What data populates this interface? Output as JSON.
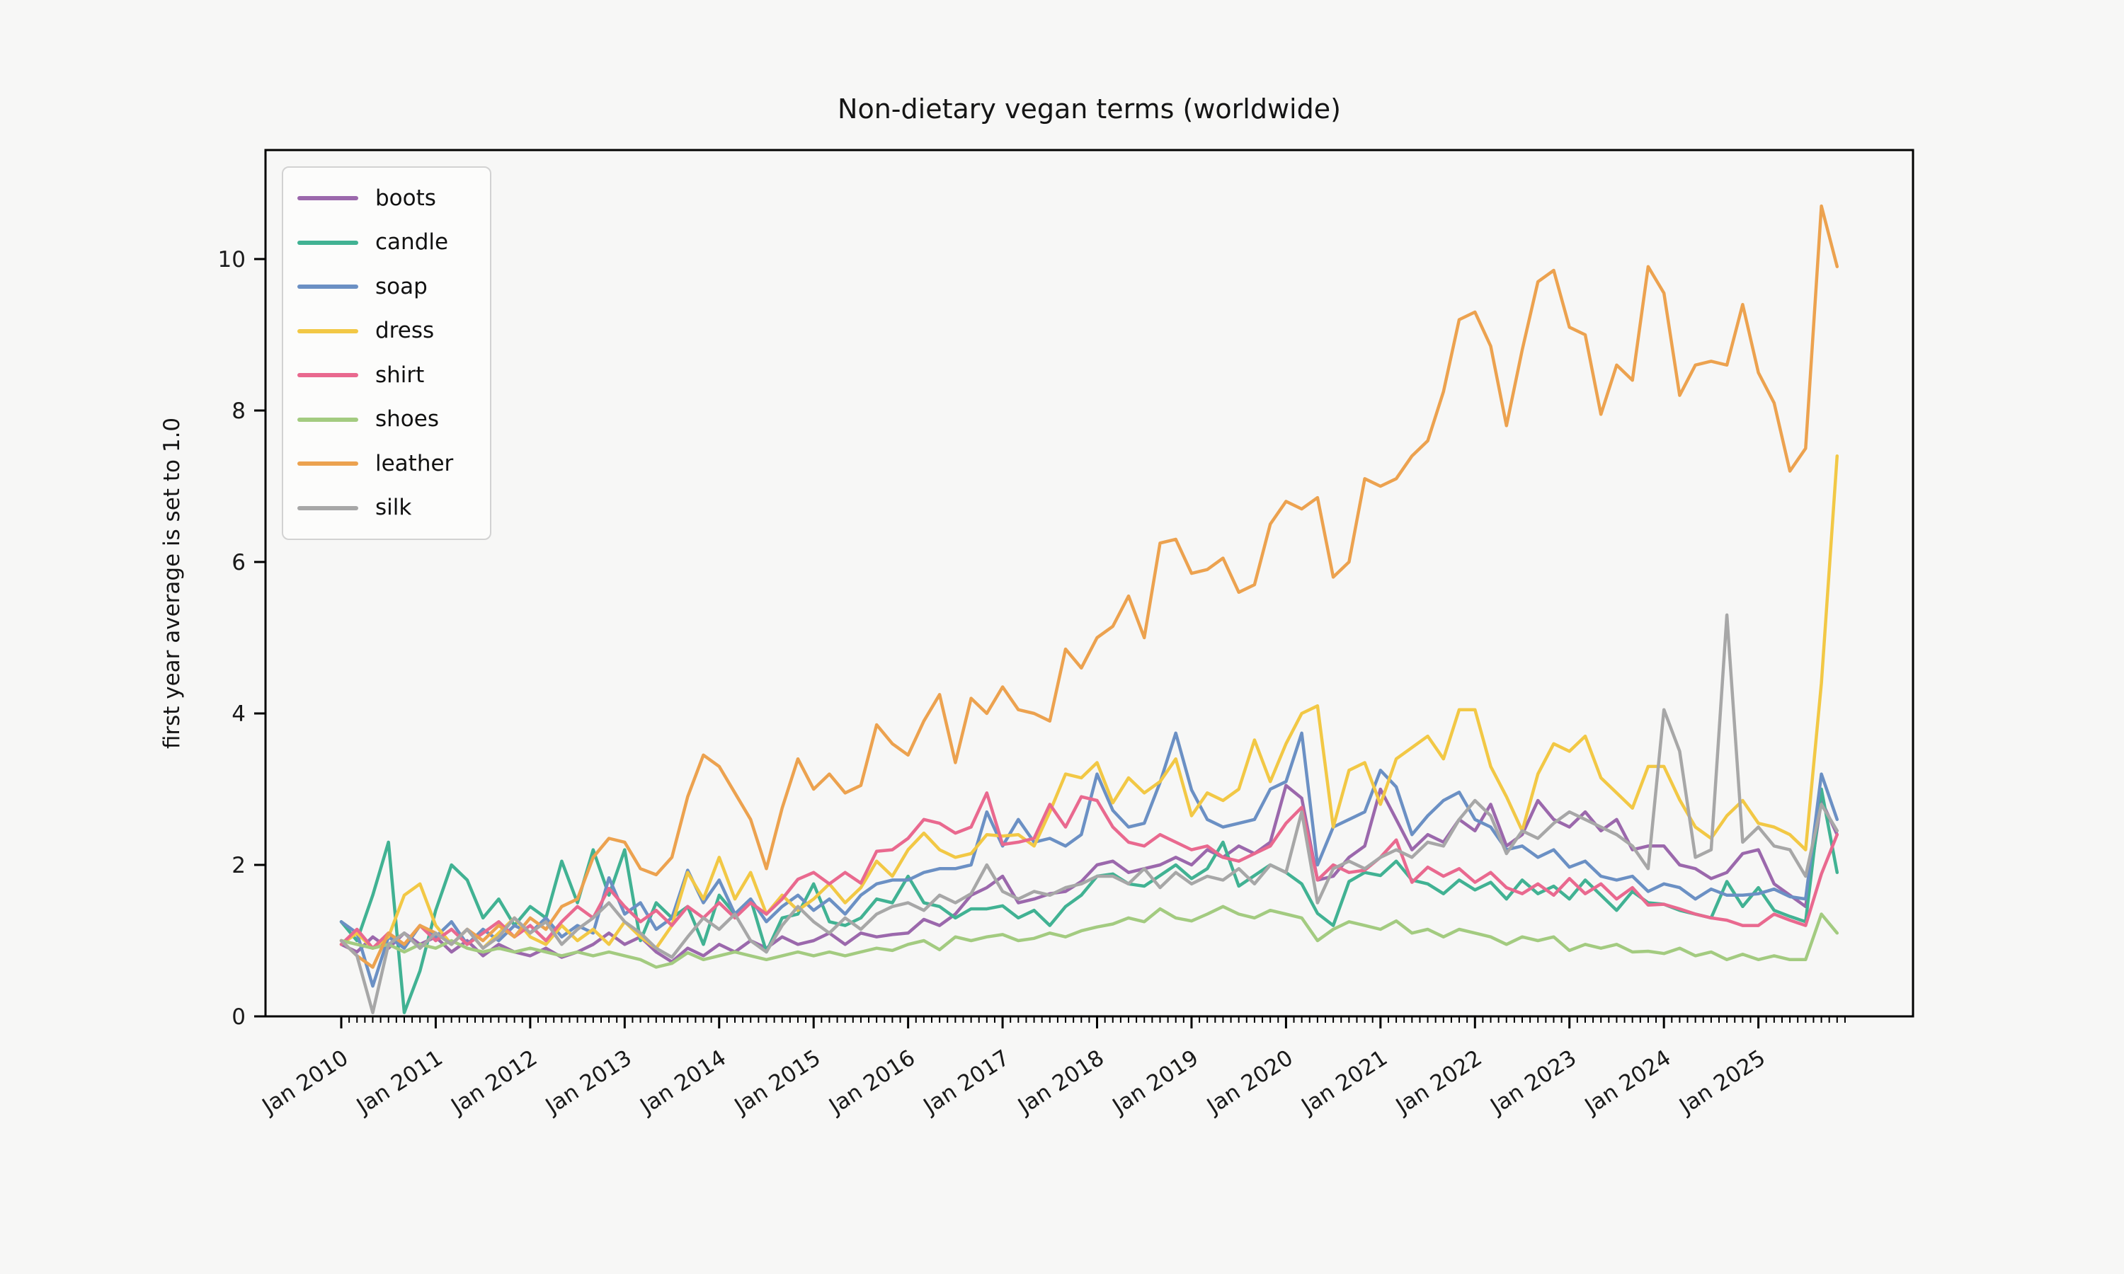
{
  "chart": {
    "title": "Non-dietary vegan terms (worldwide)",
    "ylabel": "first year average is set to 1.0",
    "x_tick_labels": [
      "Jan 2010",
      "Jan 2011",
      "Jan 2012",
      "Jan 2013",
      "Jan 2014",
      "Jan 2015",
      "Jan 2016",
      "Jan 2017",
      "Jan 2018",
      "Jan 2019",
      "Jan 2020",
      "Jan 2021",
      "Jan 2022",
      "Jan 2023",
      "Jan 2024",
      "Jan 2025"
    ],
    "y_tick_labels": [
      "0",
      "2",
      "4",
      "6",
      "8",
      "10"
    ]
  },
  "colors": {
    "background": "#f7f7f6",
    "axes_edge": "#000000",
    "tick_label": "#1a1a1a",
    "legend_bg": "#fcfcfb",
    "legend_border": "#d2d2d2"
  },
  "chart_data": {
    "type": "line",
    "title": "Non-dietary vegan terms (worldwide)",
    "xlabel": "",
    "ylabel": "first year average is set to 1.0",
    "x_start": "2010-01",
    "x_step_months": 2,
    "x_end": "2025-11",
    "xlim_years": [
      2009.35,
      2026.35
    ],
    "ylim": [
      0,
      11.44
    ],
    "grid": false,
    "legend_position": "upper left",
    "x_tick_labels": [
      "Jan 2010",
      "Jan 2011",
      "Jan 2012",
      "Jan 2013",
      "Jan 2014",
      "Jan 2015",
      "Jan 2016",
      "Jan 2017",
      "Jan 2018",
      "Jan 2019",
      "Jan 2020",
      "Jan 2021",
      "Jan 2022",
      "Jan 2023",
      "Jan 2024",
      "Jan 2025"
    ],
    "y_ticks": [
      0,
      2,
      4,
      6,
      8,
      10
    ],
    "minor_ticks": "monthly",
    "series": [
      {
        "name": "boots",
        "color": "#9b68ac",
        "values": [
          0.95,
          0.85,
          1.05,
          0.9,
          1.1,
          0.95,
          1.05,
          0.85,
          1.0,
          0.8,
          0.95,
          0.85,
          0.8,
          0.9,
          0.78,
          0.85,
          0.95,
          1.1,
          0.95,
          1.05,
          0.85,
          0.72,
          0.9,
          0.8,
          0.95,
          0.85,
          1.0,
          0.9,
          1.05,
          0.95,
          1.0,
          1.1,
          0.95,
          1.1,
          1.05,
          1.08,
          1.1,
          1.28,
          1.2,
          1.35,
          1.6,
          1.7,
          1.85,
          1.5,
          1.55,
          1.62,
          1.65,
          1.78,
          2.0,
          2.05,
          1.9,
          1.95,
          2.0,
          2.1,
          2.0,
          2.2,
          2.1,
          2.25,
          2.15,
          2.3,
          3.05,
          2.88,
          1.8,
          1.85,
          2.1,
          2.25,
          3.0,
          2.6,
          2.2,
          2.4,
          2.3,
          2.6,
          2.45,
          2.8,
          2.25,
          2.4,
          2.85,
          2.6,
          2.5,
          2.7,
          2.45,
          2.6,
          2.2,
          2.25,
          2.25,
          2.0,
          1.95,
          1.82,
          1.9,
          2.15,
          2.2,
          1.75,
          1.6,
          1.45,
          2.85,
          2.4
        ]
      },
      {
        "name": "candle",
        "color": "#41b293",
        "values": [
          1.25,
          1.0,
          1.6,
          2.3,
          0.05,
          0.6,
          1.4,
          2.0,
          1.8,
          1.3,
          1.55,
          1.2,
          1.45,
          1.3,
          2.05,
          1.5,
          2.2,
          1.6,
          2.2,
          1.0,
          1.5,
          1.3,
          1.45,
          0.95,
          1.6,
          1.35,
          1.55,
          0.85,
          1.3,
          1.35,
          1.75,
          1.25,
          1.2,
          1.3,
          1.55,
          1.5,
          1.85,
          1.5,
          1.45,
          1.3,
          1.42,
          1.42,
          1.46,
          1.3,
          1.4,
          1.2,
          1.45,
          1.6,
          1.85,
          1.88,
          1.75,
          1.72,
          1.86,
          2.0,
          1.82,
          1.95,
          2.3,
          1.72,
          1.86,
          2.0,
          1.9,
          1.75,
          1.36,
          1.2,
          1.78,
          1.9,
          1.86,
          2.05,
          1.8,
          1.75,
          1.62,
          1.8,
          1.67,
          1.77,
          1.55,
          1.8,
          1.62,
          1.72,
          1.55,
          1.8,
          1.6,
          1.4,
          1.65,
          1.5,
          1.48,
          1.4,
          1.35,
          1.3,
          1.78,
          1.45,
          1.7,
          1.4,
          1.32,
          1.25,
          3.0,
          1.9
        ]
      },
      {
        "name": "soap",
        "color": "#6b90c4",
        "values": [
          1.25,
          1.1,
          0.4,
          1.05,
          0.9,
          1.2,
          1.05,
          1.25,
          0.95,
          1.15,
          1.0,
          1.2,
          1.1,
          1.3,
          1.05,
          1.2,
          1.1,
          1.83,
          1.35,
          1.5,
          1.15,
          1.3,
          1.93,
          1.5,
          1.8,
          1.35,
          1.55,
          1.25,
          1.45,
          1.6,
          1.4,
          1.55,
          1.35,
          1.6,
          1.75,
          1.8,
          1.8,
          1.9,
          1.95,
          1.95,
          2.0,
          2.7,
          2.25,
          2.6,
          2.3,
          2.35,
          2.25,
          2.4,
          3.2,
          2.72,
          2.5,
          2.55,
          3.09,
          3.74,
          2.99,
          2.6,
          2.5,
          2.55,
          2.6,
          3.0,
          3.1,
          3.74,
          2.0,
          2.5,
          2.6,
          2.7,
          3.25,
          3.03,
          2.4,
          2.65,
          2.85,
          2.96,
          2.6,
          2.5,
          2.2,
          2.25,
          2.1,
          2.2,
          1.97,
          2.05,
          1.85,
          1.8,
          1.85,
          1.65,
          1.75,
          1.7,
          1.55,
          1.68,
          1.6,
          1.6,
          1.62,
          1.68,
          1.58,
          1.55,
          3.2,
          2.6
        ]
      },
      {
        "name": "dress",
        "color": "#f2c845",
        "values": [
          0.95,
          1.1,
          0.9,
          1.05,
          1.6,
          1.75,
          1.2,
          0.95,
          1.15,
          0.9,
          1.1,
          1.3,
          1.05,
          0.95,
          1.2,
          1.0,
          1.15,
          0.95,
          1.25,
          1.05,
          0.9,
          1.2,
          1.9,
          1.55,
          2.1,
          1.55,
          1.9,
          1.35,
          1.6,
          1.4,
          1.55,
          1.75,
          1.5,
          1.7,
          2.05,
          1.85,
          2.2,
          2.42,
          2.2,
          2.1,
          2.15,
          2.4,
          2.38,
          2.4,
          2.25,
          2.7,
          3.2,
          3.15,
          3.35,
          2.82,
          3.15,
          2.95,
          3.1,
          3.4,
          2.65,
          2.95,
          2.85,
          3.0,
          3.65,
          3.1,
          3.6,
          4.0,
          4.1,
          2.5,
          3.25,
          3.35,
          2.8,
          3.4,
          3.55,
          3.7,
          3.4,
          4.05,
          4.05,
          3.3,
          2.9,
          2.45,
          3.2,
          3.6,
          3.5,
          3.7,
          3.15,
          2.95,
          2.75,
          3.3,
          3.3,
          2.86,
          2.5,
          2.35,
          2.65,
          2.85,
          2.55,
          2.5,
          2.4,
          2.2,
          4.4,
          7.4
        ]
      },
      {
        "name": "shirt",
        "color": "#e9698f",
        "values": [
          0.95,
          1.15,
          0.9,
          1.1,
          0.95,
          1.2,
          1.0,
          1.15,
          0.95,
          1.1,
          1.25,
          1.05,
          1.2,
          1.0,
          1.25,
          1.45,
          1.3,
          1.69,
          1.45,
          1.25,
          1.4,
          1.2,
          1.45,
          1.3,
          1.5,
          1.3,
          1.5,
          1.35,
          1.55,
          1.81,
          1.9,
          1.75,
          1.9,
          1.76,
          2.18,
          2.2,
          2.35,
          2.6,
          2.55,
          2.42,
          2.5,
          2.95,
          2.27,
          2.3,
          2.35,
          2.8,
          2.5,
          2.9,
          2.85,
          2.5,
          2.3,
          2.25,
          2.4,
          2.3,
          2.2,
          2.25,
          2.1,
          2.05,
          2.15,
          2.25,
          2.55,
          2.76,
          1.8,
          2.0,
          1.9,
          1.93,
          2.1,
          2.33,
          1.77,
          1.97,
          1.85,
          1.95,
          1.77,
          1.9,
          1.7,
          1.62,
          1.75,
          1.6,
          1.82,
          1.62,
          1.75,
          1.55,
          1.7,
          1.47,
          1.48,
          1.42,
          1.35,
          1.3,
          1.27,
          1.2,
          1.2,
          1.35,
          1.27,
          1.2,
          1.88,
          2.4
        ]
      },
      {
        "name": "shoes",
        "color": "#a3cb80",
        "values": [
          1.0,
          0.95,
          0.9,
          0.95,
          0.85,
          0.95,
          0.9,
          1.0,
          0.9,
          0.85,
          0.9,
          0.85,
          0.9,
          0.85,
          0.8,
          0.85,
          0.8,
          0.85,
          0.8,
          0.75,
          0.65,
          0.7,
          0.84,
          0.75,
          0.8,
          0.85,
          0.8,
          0.75,
          0.8,
          0.85,
          0.8,
          0.85,
          0.8,
          0.85,
          0.9,
          0.87,
          0.95,
          1.0,
          0.88,
          1.05,
          1.0,
          1.05,
          1.08,
          1.0,
          1.03,
          1.1,
          1.05,
          1.13,
          1.18,
          1.22,
          1.3,
          1.25,
          1.42,
          1.3,
          1.26,
          1.35,
          1.45,
          1.35,
          1.3,
          1.4,
          1.35,
          1.3,
          1.0,
          1.15,
          1.25,
          1.2,
          1.15,
          1.26,
          1.1,
          1.15,
          1.05,
          1.15,
          1.1,
          1.05,
          0.95,
          1.05,
          1.0,
          1.05,
          0.87,
          0.95,
          0.9,
          0.95,
          0.85,
          0.86,
          0.83,
          0.9,
          0.8,
          0.85,
          0.75,
          0.82,
          0.75,
          0.8,
          0.75,
          0.75,
          1.35,
          1.1
        ]
      },
      {
        "name": "leather",
        "color": "#eca24f",
        "values": [
          1.0,
          0.8,
          0.65,
          1.1,
          0.95,
          1.2,
          1.1,
          0.95,
          1.15,
          1.0,
          1.2,
          1.05,
          1.3,
          1.15,
          1.45,
          1.55,
          2.1,
          2.35,
          2.3,
          1.95,
          1.87,
          2.1,
          2.9,
          3.45,
          3.3,
          2.95,
          2.6,
          1.95,
          2.75,
          3.4,
          3.0,
          3.2,
          2.95,
          3.05,
          3.85,
          3.6,
          3.45,
          3.9,
          4.25,
          3.35,
          4.2,
          4.0,
          4.35,
          4.05,
          4.0,
          3.9,
          4.85,
          4.6,
          5.0,
          5.15,
          5.55,
          5.0,
          6.25,
          6.3,
          5.85,
          5.9,
          6.05,
          5.6,
          5.7,
          6.5,
          6.8,
          6.7,
          6.85,
          5.8,
          6.0,
          7.1,
          7.0,
          7.1,
          7.4,
          7.6,
          8.25,
          9.2,
          9.3,
          8.85,
          7.8,
          8.8,
          9.7,
          9.85,
          9.1,
          9.0,
          7.95,
          8.6,
          8.4,
          9.9,
          9.55,
          8.2,
          8.6,
          8.65,
          8.6,
          9.4,
          8.5,
          8.1,
          7.2,
          7.5,
          10.7,
          9.9
        ]
      },
      {
        "name": "silk",
        "color": "#a7a7a7",
        "values": [
          1.0,
          0.8,
          0.05,
          0.95,
          1.1,
          0.9,
          1.1,
          0.95,
          1.15,
          0.9,
          1.05,
          1.3,
          1.1,
          1.25,
          0.95,
          1.15,
          1.3,
          1.5,
          1.25,
          1.1,
          0.9,
          0.78,
          1.05,
          1.3,
          1.15,
          1.35,
          1.0,
          0.85,
          1.2,
          1.45,
          1.25,
          1.1,
          1.3,
          1.15,
          1.35,
          1.45,
          1.5,
          1.4,
          1.6,
          1.5,
          1.62,
          2.0,
          1.65,
          1.55,
          1.65,
          1.6,
          1.7,
          1.75,
          1.85,
          1.85,
          1.75,
          1.95,
          1.7,
          1.9,
          1.75,
          1.85,
          1.8,
          1.95,
          1.75,
          2.0,
          1.9,
          2.7,
          1.5,
          1.95,
          2.05,
          1.95,
          2.1,
          2.2,
          2.1,
          2.3,
          2.25,
          2.6,
          2.85,
          2.65,
          2.15,
          2.45,
          2.35,
          2.55,
          2.7,
          2.6,
          2.5,
          2.4,
          2.25,
          1.95,
          4.05,
          3.5,
          2.1,
          2.2,
          5.3,
          2.3,
          2.5,
          2.25,
          2.2,
          1.85,
          2.8,
          2.45
        ]
      }
    ]
  }
}
